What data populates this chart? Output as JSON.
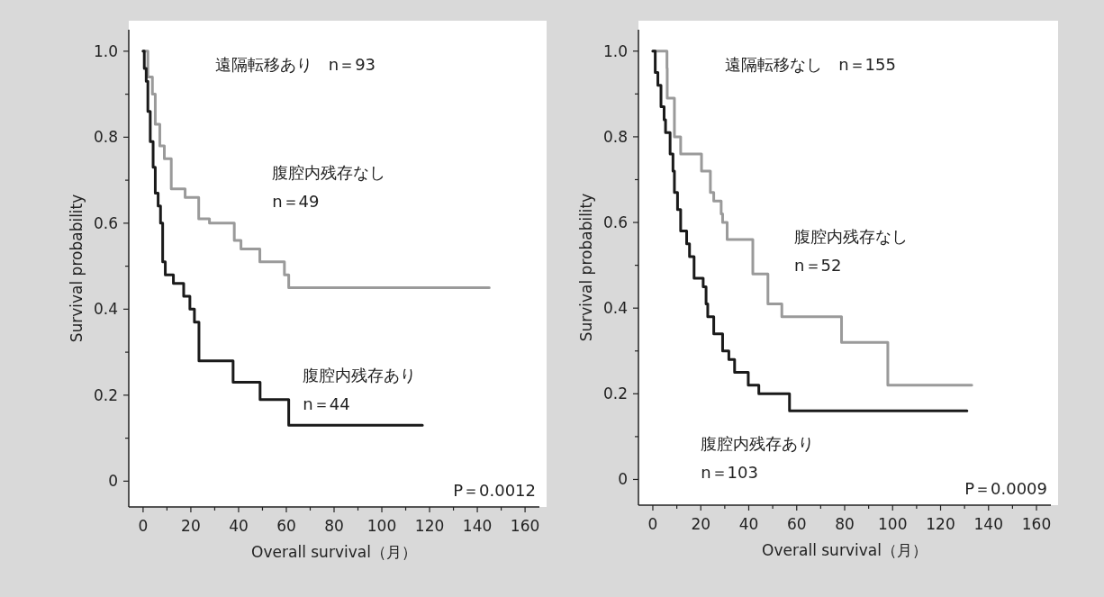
{
  "chart_data": [
    {
      "type": "step",
      "title": "遠隔転移あり　n＝93",
      "xlabel": "Overall survival（月）",
      "ylabel": "Survival probability",
      "xlim": [
        -6,
        166
      ],
      "ylim": [
        -0.06,
        1.05
      ],
      "xticks": [
        0,
        {
          "value": 10,
          "label": null
        },
        20,
        {
          "value": 30,
          "label": null
        },
        40,
        {
          "value": 50,
          "label": null
        },
        60,
        {
          "value": 70,
          "label": null
        },
        80,
        {
          "value": 90,
          "label": null
        },
        100,
        {
          "value": 110,
          "label": null
        },
        120,
        {
          "value": 130,
          "label": null
        },
        140,
        {
          "value": 150,
          "label": null
        },
        160
      ],
      "yticks": [
        0,
        {
          "value": 0.1,
          "label": null
        },
        0.2,
        {
          "value": 0.3,
          "label": null
        },
        0.4,
        {
          "value": 0.5,
          "label": null
        },
        0.6,
        {
          "value": 0.7,
          "label": null
        },
        0.8,
        {
          "value": 0.9,
          "label": null
        },
        {
          "value": 1,
          "label": "1.0"
        }
      ],
      "line_style": "solid",
      "grid": false,
      "series": [
        {
          "color": "#9a9a9a",
          "x": [
            0,
            2,
            3.9,
            5.1,
            7,
            8.9,
            11.8,
            17.6,
            23.3,
            27.8,
            38.2,
            41,
            48.9,
            59.2,
            61,
            145
          ],
          "values": [
            1.0,
            0.94,
            0.9,
            0.83,
            0.78,
            0.75,
            0.68,
            0.66,
            0.61,
            0.6,
            0.56,
            0.54,
            0.51,
            0.48,
            0.45,
            0.45
          ]
        },
        {
          "color": "#1a1a1a",
          "x": [
            0,
            0.5,
            1.3,
            2,
            3,
            4.2,
            5.1,
            6.3,
            7.3,
            8.2,
            9.3,
            12.7,
            17,
            19.6,
            21.5,
            23.4,
            37.7,
            49,
            61,
            117
          ],
          "values": [
            1.0,
            0.96,
            0.93,
            0.86,
            0.79,
            0.73,
            0.67,
            0.64,
            0.6,
            0.51,
            0.48,
            0.46,
            0.43,
            0.4,
            0.37,
            0.28,
            0.23,
            0.19,
            0.13,
            0.13
          ]
        }
      ],
      "annotations": [
        "腹腔内残存なし\nn＝49",
        "腹腔内残存あり\nn＝44",
        "P＝0.0012"
      ]
    },
    {
      "type": "step",
      "title": "遠隔転移なし　n＝155",
      "xlabel": "Overall survival（月）",
      "ylabel": "Survival probability",
      "xlim": [
        -6,
        166
      ],
      "ylim": [
        -0.06,
        1.05
      ],
      "xticks": [
        0,
        {
          "value": 10,
          "label": null
        },
        20,
        {
          "value": 30,
          "label": null
        },
        40,
        {
          "value": 50,
          "label": null
        },
        60,
        {
          "value": 70,
          "label": null
        },
        80,
        {
          "value": 90,
          "label": null
        },
        100,
        {
          "value": 110,
          "label": null
        },
        120,
        {
          "value": 130,
          "label": null
        },
        140,
        {
          "value": 150,
          "label": null
        },
        160
      ],
      "yticks": [
        0,
        {
          "value": 0.1,
          "label": null
        },
        0.2,
        {
          "value": 0.3,
          "label": null
        },
        0.4,
        {
          "value": 0.5,
          "label": null
        },
        0.6,
        {
          "value": 0.7,
          "label": null
        },
        0.8,
        {
          "value": 0.9,
          "label": null
        },
        {
          "value": 1,
          "label": "1.0"
        }
      ],
      "line_style": "solid",
      "grid": false,
      "series": [
        {
          "color": "#9a9a9a",
          "x": [
            0,
            5.9,
            6,
            9,
            11.6,
            20.3,
            24,
            25.4,
            28.5,
            29.1,
            31,
            41.7,
            48,
            53.8,
            78.7,
            98,
            133
          ],
          "values": [
            1.0,
            0.96,
            0.89,
            0.8,
            0.76,
            0.72,
            0.67,
            0.65,
            0.62,
            0.6,
            0.56,
            0.48,
            0.41,
            0.38,
            0.32,
            0.22,
            0.22
          ]
        },
        {
          "color": "#1a1a1a",
          "x": [
            0,
            1,
            2.1,
            3.4,
            4.7,
            5.3,
            7.2,
            8.4,
            9,
            10.3,
            11.6,
            14.1,
            15.3,
            17.2,
            21,
            22.2,
            22.9,
            25.4,
            29.1,
            31.7,
            34.1,
            39.8,
            44.2,
            57,
            131
          ],
          "values": [
            1.0,
            0.95,
            0.92,
            0.87,
            0.84,
            0.81,
            0.76,
            0.72,
            0.67,
            0.63,
            0.58,
            0.55,
            0.52,
            0.47,
            0.45,
            0.41,
            0.38,
            0.34,
            0.3,
            0.28,
            0.25,
            0.22,
            0.2,
            0.16,
            0.16
          ]
        }
      ],
      "annotations": [
        "腹腔内残存なし\nn＝52",
        "腹腔内残存あり\nn＝103",
        "P＝0.0009"
      ]
    }
  ]
}
